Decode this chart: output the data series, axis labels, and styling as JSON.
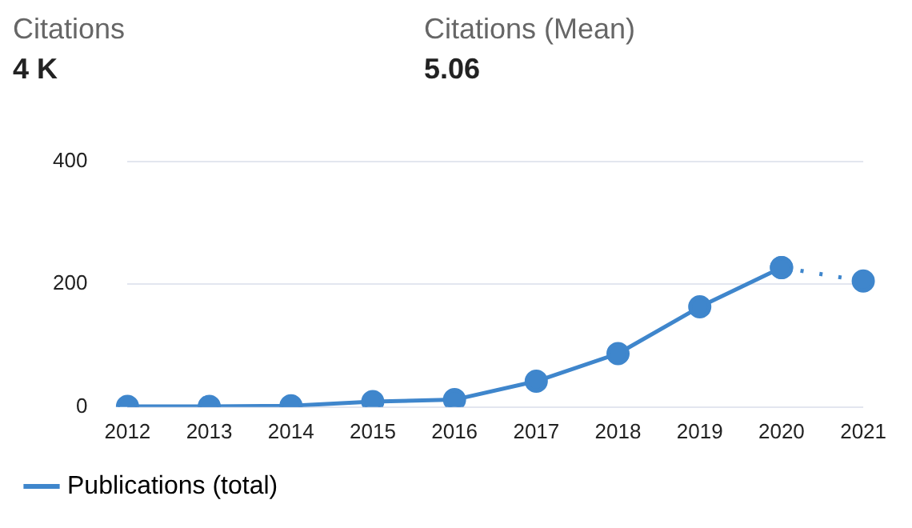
{
  "chart_data": {
    "type": "line",
    "annotations": [
      "Citations",
      "4 K",
      "Citations (Mean)",
      "5.06"
    ],
    "categories": [
      "2012",
      "2013",
      "2014",
      "2015",
      "2016",
      "2017",
      "2018",
      "2019",
      "2020",
      "2021"
    ],
    "series": [
      {
        "name": "Publications (total)",
        "color": "#3f86cc",
        "values": [
          1,
          1,
          2,
          9,
          12,
          42,
          87,
          163,
          227,
          null
        ],
        "line_style": "solid"
      },
      {
        "color": "#3f86cc",
        "values": [
          null,
          null,
          null,
          null,
          null,
          null,
          null,
          null,
          227,
          205
        ],
        "line_style": "dotted"
      }
    ],
    "ylim": [
      0,
      400
    ],
    "yticks": [
      0,
      200,
      400
    ],
    "grid": "y",
    "legend": "bottom",
    "marker": "circle"
  }
}
